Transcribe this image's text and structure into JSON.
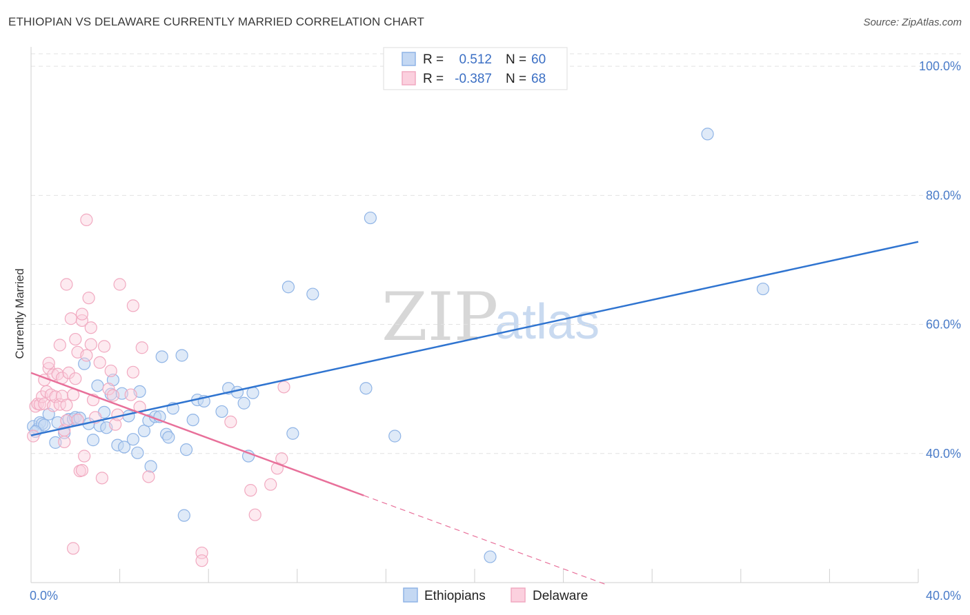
{
  "header": {
    "title": "ETHIOPIAN VS DELAWARE CURRENTLY MARRIED CORRELATION CHART",
    "source": "Source: ZipAtlas.com"
  },
  "watermark": {
    "zip": "ZIP",
    "atlas": "atlas"
  },
  "colors": {
    "ethiopians": "#8fb4e6",
    "ethiopians_line": "#2f74d0",
    "delaware": "#f1a9c0",
    "delaware_line": "#e8709a",
    "tick": "#4a7cc9"
  },
  "legend": {
    "rows": [
      {
        "r_label": "R =",
        "r_value": "0.512",
        "n_label": "N =",
        "n_value": "60"
      },
      {
        "r_label": "R =",
        "r_value": "-0.387",
        "n_label": "N =",
        "n_value": "68"
      }
    ]
  },
  "bottom_legend": {
    "items": [
      "Ethiopians",
      "Delaware"
    ]
  },
  "chart_data": {
    "type": "scatter",
    "title": "ETHIOPIAN VS DELAWARE CURRENTLY MARRIED CORRELATION CHART",
    "xlabel": "",
    "ylabel": "Currently Married",
    "xlim": [
      0,
      40
    ],
    "ylim": [
      20,
      103
    ],
    "x_tick_labels": [
      "0.0%",
      "40.0%"
    ],
    "y_ticks": [
      40,
      60,
      80,
      100
    ],
    "y_tick_labels": [
      "40.0%",
      "60.0%",
      "80.0%",
      "100.0%"
    ],
    "grid": true,
    "series": [
      {
        "name": "Ethiopians",
        "trend": {
          "x0": 0,
          "y0": 42.8,
          "x1": 40,
          "y1": 72.8
        },
        "points": [
          [
            0.1,
            44.2
          ],
          [
            0.3,
            43.8
          ],
          [
            0.4,
            44.8
          ],
          [
            0.5,
            44.6
          ],
          [
            0.6,
            44.4
          ],
          [
            0.8,
            46.1
          ],
          [
            1.1,
            41.7
          ],
          [
            1.2,
            44.8
          ],
          [
            1.5,
            43.2
          ],
          [
            1.7,
            45.3
          ],
          [
            1.9,
            45.3
          ],
          [
            2.0,
            45.6
          ],
          [
            2.2,
            45.5
          ],
          [
            2.4,
            53.9
          ],
          [
            2.6,
            44.6
          ],
          [
            2.8,
            42.1
          ],
          [
            3.0,
            50.5
          ],
          [
            3.1,
            44.3
          ],
          [
            3.3,
            46.4
          ],
          [
            3.4,
            44.0
          ],
          [
            3.6,
            49.2
          ],
          [
            3.7,
            51.4
          ],
          [
            3.9,
            41.3
          ],
          [
            4.1,
            49.3
          ],
          [
            4.2,
            41.0
          ],
          [
            4.4,
            45.8
          ],
          [
            4.6,
            42.2
          ],
          [
            4.8,
            40.1
          ],
          [
            4.9,
            49.6
          ],
          [
            5.1,
            43.5
          ],
          [
            5.3,
            45.1
          ],
          [
            5.4,
            38.0
          ],
          [
            5.6,
            45.7
          ],
          [
            5.8,
            45.7
          ],
          [
            5.9,
            55.0
          ],
          [
            6.1,
            43.0
          ],
          [
            6.2,
            42.5
          ],
          [
            6.4,
            47.0
          ],
          [
            6.8,
            55.2
          ],
          [
            6.9,
            30.4
          ],
          [
            7.0,
            40.6
          ],
          [
            7.3,
            45.2
          ],
          [
            7.5,
            48.3
          ],
          [
            7.8,
            48.1
          ],
          [
            8.6,
            46.5
          ],
          [
            8.9,
            50.1
          ],
          [
            9.3,
            49.5
          ],
          [
            9.6,
            47.8
          ],
          [
            9.8,
            39.6
          ],
          [
            10.0,
            49.4
          ],
          [
            11.6,
            65.8
          ],
          [
            11.8,
            43.1
          ],
          [
            12.7,
            64.7
          ],
          [
            15.1,
            50.1
          ],
          [
            15.3,
            76.5
          ],
          [
            16.4,
            42.7
          ],
          [
            20.7,
            24.0
          ],
          [
            30.5,
            89.5
          ],
          [
            33.0,
            65.5
          ],
          [
            0.2,
            43.4
          ]
        ]
      },
      {
        "name": "Delaware",
        "trend": {
          "x0": 0,
          "y0": 52.5,
          "x1": 15.0,
          "y1": 33.5
        },
        "trend_dashed": {
          "x0": 15.0,
          "y0": 33.5,
          "x1": 26.0,
          "y1": 19.6
        },
        "points": [
          [
            0.1,
            42.7
          ],
          [
            0.2,
            47.3
          ],
          [
            0.3,
            47.7
          ],
          [
            0.4,
            47.6
          ],
          [
            0.5,
            48.8
          ],
          [
            0.6,
            51.4
          ],
          [
            0.6,
            47.7
          ],
          [
            0.7,
            49.6
          ],
          [
            0.8,
            53.2
          ],
          [
            0.8,
            54.0
          ],
          [
            0.9,
            49.1
          ],
          [
            1.0,
            52.2
          ],
          [
            1.0,
            47.4
          ],
          [
            1.1,
            48.8
          ],
          [
            1.2,
            52.3
          ],
          [
            1.3,
            56.8
          ],
          [
            1.3,
            47.6
          ],
          [
            1.4,
            51.7
          ],
          [
            1.4,
            48.9
          ],
          [
            1.5,
            43.6
          ],
          [
            1.5,
            41.8
          ],
          [
            1.6,
            45.1
          ],
          [
            1.6,
            47.5
          ],
          [
            1.6,
            66.2
          ],
          [
            1.7,
            52.5
          ],
          [
            1.8,
            60.9
          ],
          [
            1.9,
            25.3
          ],
          [
            1.9,
            49.1
          ],
          [
            2.0,
            51.6
          ],
          [
            2.0,
            57.7
          ],
          [
            2.1,
            45.2
          ],
          [
            2.1,
            55.7
          ],
          [
            2.2,
            37.3
          ],
          [
            2.3,
            37.4
          ],
          [
            2.3,
            60.6
          ],
          [
            2.3,
            61.6
          ],
          [
            2.4,
            39.6
          ],
          [
            2.5,
            76.2
          ],
          [
            2.5,
            55.2
          ],
          [
            2.6,
            64.1
          ],
          [
            2.7,
            59.5
          ],
          [
            2.7,
            56.9
          ],
          [
            2.8,
            48.3
          ],
          [
            2.9,
            45.6
          ],
          [
            3.1,
            54.1
          ],
          [
            3.2,
            36.2
          ],
          [
            3.3,
            56.6
          ],
          [
            3.5,
            50.0
          ],
          [
            3.6,
            52.8
          ],
          [
            3.7,
            49.0
          ],
          [
            3.8,
            44.5
          ],
          [
            3.9,
            46.0
          ],
          [
            4.0,
            66.2
          ],
          [
            4.5,
            49.1
          ],
          [
            4.6,
            62.9
          ],
          [
            4.6,
            52.6
          ],
          [
            4.9,
            47.2
          ],
          [
            5.0,
            56.4
          ],
          [
            5.3,
            36.4
          ],
          [
            7.7,
            24.6
          ],
          [
            7.7,
            23.4
          ],
          [
            9.0,
            44.9
          ],
          [
            9.9,
            34.3
          ],
          [
            10.1,
            30.5
          ],
          [
            10.8,
            35.2
          ],
          [
            11.1,
            37.7
          ],
          [
            11.3,
            39.2
          ],
          [
            11.4,
            50.3
          ]
        ]
      }
    ]
  }
}
